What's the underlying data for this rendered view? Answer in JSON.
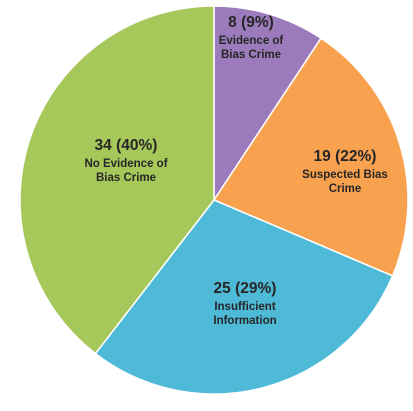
{
  "chart_data": {
    "type": "pie",
    "slices": [
      {
        "value_label": "8 (9%)",
        "value": 8,
        "percent": 9,
        "label_lines": [
          "Evidence of",
          "Bias Crime"
        ],
        "color": "#9b7bbb"
      },
      {
        "value_label": "19 (22%)",
        "value": 19,
        "percent": 22,
        "label_lines": [
          "Suspected Bias",
          "Crime"
        ],
        "color": "#f8a14e"
      },
      {
        "value_label": "25 (29%)",
        "value": 25,
        "percent": 29,
        "label_lines": [
          "Insufficient",
          "Information"
        ],
        "color": "#4fbad8"
      },
      {
        "value_label": "34 (40%)",
        "value": 34,
        "percent": 40,
        "label_lines": [
          "No Evidence of",
          "Bias Crime"
        ],
        "color": "#a6c85b"
      }
    ]
  }
}
